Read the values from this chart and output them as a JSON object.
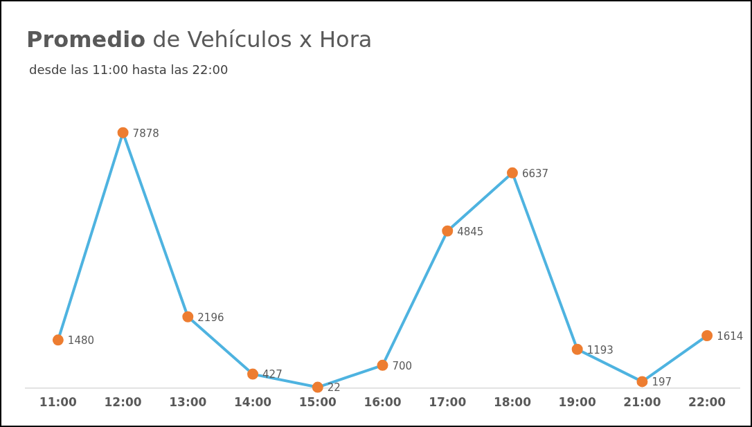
{
  "chart_data": {
    "type": "line",
    "title": "Promedio de Vehículos x Hora",
    "subtitle": "desde las 11:00 hasta las 22:00",
    "categories": [
      "11:00",
      "12:00",
      "13:00",
      "14:00",
      "15:00",
      "16:00",
      "17:00",
      "18:00",
      "19:00",
      "21:00",
      "22:00"
    ],
    "series": [
      {
        "color": "#4eb3e0",
        "values": [
          1480,
          7878,
          2196,
          427,
          22,
          700,
          4845,
          6637,
          1193,
          197,
          1614
        ]
      }
    ],
    "data_labels": true,
    "marker": "circle",
    "grid": false,
    "legend": false
  }
}
